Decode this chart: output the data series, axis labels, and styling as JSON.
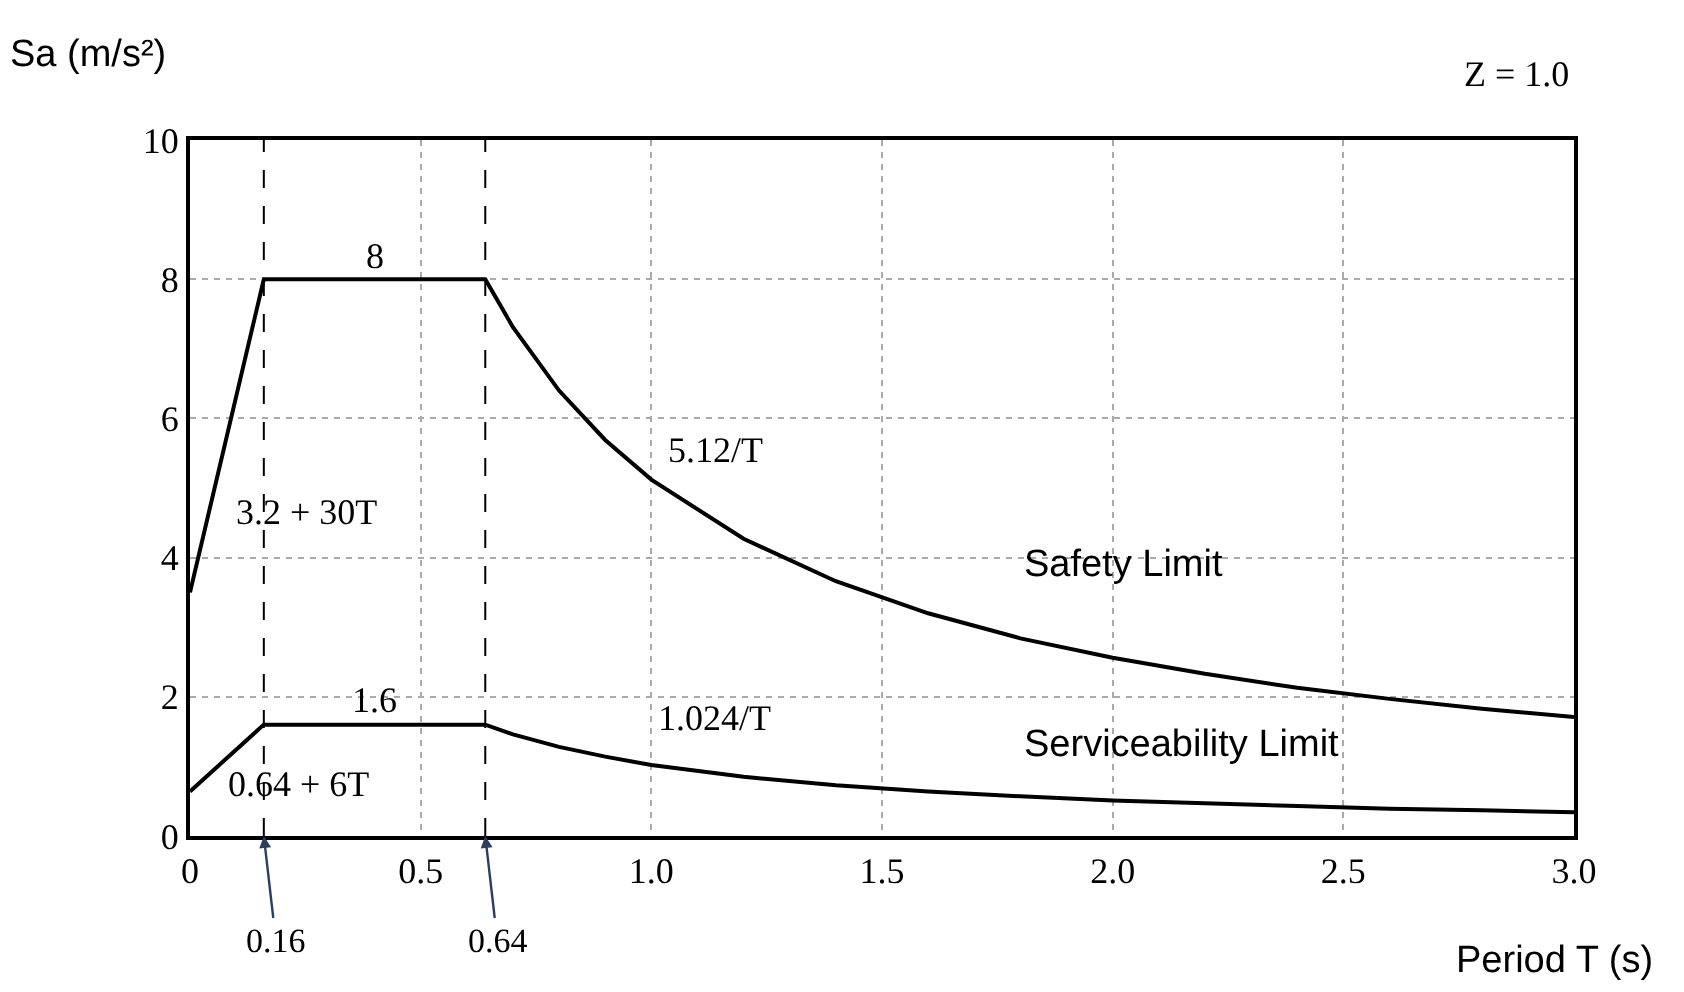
{
  "chart_data": {
    "type": "line",
    "xlabel": "Period T (s)",
    "ylabel": "Sa (m/s²)",
    "x": [
      0,
      0.16,
      0.64,
      0.7,
      0.8,
      0.9,
      1.0,
      1.2,
      1.4,
      1.6,
      1.8,
      2.0,
      2.2,
      2.4,
      2.6,
      2.8,
      3.0
    ],
    "series": [
      {
        "color": "#000000",
        "values": [
          3.5,
          8,
          8,
          7.31,
          6.4,
          5.69,
          5.12,
          4.27,
          3.66,
          3.2,
          2.84,
          2.56,
          2.33,
          2.13,
          1.97,
          1.83,
          1.71
        ]
      },
      {
        "color": "#000000",
        "values": [
          0.64,
          1.6,
          1.6,
          1.46,
          1.28,
          1.14,
          1.02,
          0.85,
          0.73,
          0.64,
          0.57,
          0.51,
          0.47,
          0.43,
          0.39,
          0.37,
          0.34
        ]
      }
    ],
    "xlim": [
      0,
      3.0
    ],
    "ylim": [
      0,
      10
    ],
    "xticks": [
      0,
      0.5,
      {
        "value": 1,
        "label": "1.0"
      },
      1.5,
      {
        "value": 2,
        "label": "2.0"
      },
      2.5,
      {
        "value": 3,
        "label": "3.0"
      }
    ],
    "yticks": [
      0,
      2,
      4,
      6,
      8,
      10
    ],
    "grid": true,
    "marker": "none",
    "line_style": "solid",
    "ref_lines": [
      {
        "axis": "x",
        "value": 0.16,
        "label": "0.16",
        "line_style": "dashed",
        "color": "#000000"
      },
      {
        "axis": "x",
        "value": 0.64,
        "label": "0.64",
        "line_style": "dashed",
        "color": "#000000"
      }
    ],
    "annotations": [
      {
        "text": "8",
        "x": 0.4,
        "y": 8
      },
      "3.2 + 30T",
      "5.12/T",
      {
        "text": "1.6",
        "x": 0.4,
        "y": 1.6
      },
      "0.64 + 6T",
      "1.024/T",
      "Safety Limit",
      "Serviceability Limit",
      "Z = 1.0"
    ]
  }
}
